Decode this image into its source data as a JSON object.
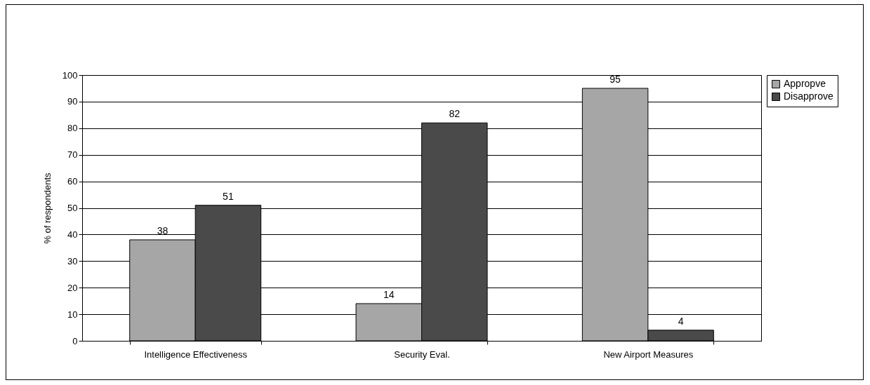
{
  "chart_data": {
    "type": "bar",
    "ylabel": "% of respondents",
    "categories": [
      "Intelligence Effectiveness",
      "Security Eval.",
      "New Airport Measures"
    ],
    "series": [
      {
        "name": "Appropve",
        "color": "#a6a6a6",
        "values": [
          38,
          14,
          95
        ]
      },
      {
        "name": "Disapprove",
        "color": "#4a4a4a",
        "values": [
          51,
          82,
          4
        ]
      }
    ],
    "ylim": [
      0,
      100
    ],
    "yticks": [
      0,
      10,
      20,
      30,
      40,
      50,
      60,
      70,
      80,
      90,
      100
    ],
    "grid": "y",
    "legend": "right",
    "data_labels": true
  }
}
